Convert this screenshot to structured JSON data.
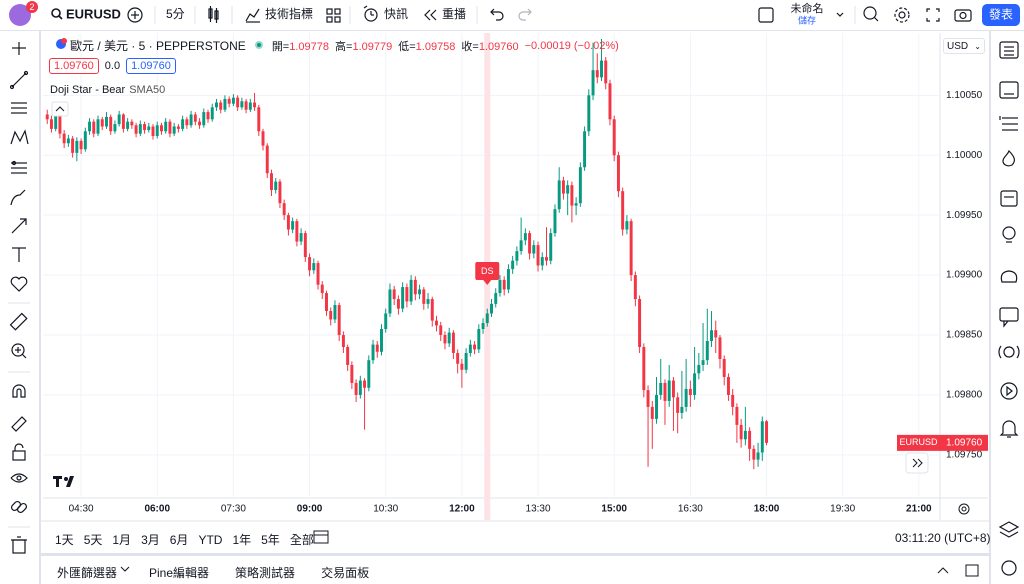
{
  "toolbar": {
    "badge": "2",
    "symbol": "EURUSD",
    "interval": "5分",
    "indicators": "技術指標",
    "alerts": "快訊",
    "replay": "重播",
    "layout_name": "未命名",
    "save": "儲存",
    "publish": "發表"
  },
  "chart_data": {
    "type": "candlestick",
    "title": "歐元 / 美元 · 5 · PEPPERSTONE",
    "ohlc_legend": [
      [
        "開=",
        "1.09778"
      ],
      [
        "高=",
        "1.09779"
      ],
      [
        "低=",
        "1.09758"
      ],
      [
        "收=",
        "1.09760"
      ]
    ],
    "change": "−0.00019 (−0.02%)",
    "quote": {
      "bid": "1.09760",
      "spread": "0.0",
      "ask": "1.09760"
    },
    "indicators": [
      "Doji Star - Bear",
      "SMA50"
    ],
    "currency": "USD",
    "annotation": {
      "x": "12:30",
      "label": "DS"
    },
    "price_tag": {
      "symbol": "EURUSD",
      "value": "1.09760"
    },
    "colors": {
      "up": "#089981",
      "down": "#f23645"
    },
    "grid": true,
    "xlim": [
      "03:45",
      "21:25"
    ],
    "xticks": [
      "04:30",
      "06:00",
      "07:30",
      "09:00",
      "10:30",
      "12:00",
      "13:30",
      "15:00",
      "16:30",
      "18:00",
      "19:30",
      "21:00"
    ],
    "ylim": [
      1.09714,
      1.10102
    ],
    "yticks": [
      {
        "value": 1.0975,
        "label": "1.09750"
      },
      {
        "value": 1.098,
        "label": "1.09800"
      },
      {
        "value": 1.0985,
        "label": "1.09850"
      },
      {
        "value": 1.099,
        "label": "1.09900"
      },
      {
        "value": 1.0995,
        "label": "1.09950"
      },
      {
        "value": 1.1,
        "label": "1.10000"
      },
      {
        "value": 1.1005,
        "label": "1.10050"
      }
    ],
    "x": [
      "03:50",
      "03:55",
      "04:00",
      "04:05",
      "04:10",
      "04:15",
      "04:20",
      "04:25",
      "04:30",
      "04:35",
      "04:40",
      "04:45",
      "04:50",
      "04:55",
      "05:00",
      "05:05",
      "05:10",
      "05:15",
      "05:20",
      "05:25",
      "05:30",
      "05:35",
      "05:40",
      "05:45",
      "05:50",
      "05:55",
      "06:00",
      "06:05",
      "06:10",
      "06:15",
      "06:20",
      "06:25",
      "06:30",
      "06:35",
      "06:40",
      "06:45",
      "06:50",
      "06:55",
      "07:00",
      "07:05",
      "07:10",
      "07:15",
      "07:20",
      "07:25",
      "07:30",
      "07:35",
      "07:40",
      "07:45",
      "07:50",
      "07:55",
      "08:00",
      "08:05",
      "08:10",
      "08:15",
      "08:20",
      "08:25",
      "08:30",
      "08:35",
      "08:40",
      "08:45",
      "08:50",
      "08:55",
      "09:00",
      "09:05",
      "09:10",
      "09:15",
      "09:20",
      "09:25",
      "09:30",
      "09:35",
      "09:40",
      "09:45",
      "09:50",
      "09:55",
      "10:00",
      "10:05",
      "10:10",
      "10:15",
      "10:20",
      "10:25",
      "10:30",
      "10:35",
      "10:40",
      "10:45",
      "10:50",
      "10:55",
      "11:00",
      "11:05",
      "11:10",
      "11:15",
      "11:20",
      "11:25",
      "11:30",
      "11:35",
      "11:40",
      "11:45",
      "11:50",
      "11:55",
      "12:00",
      "12:05",
      "12:10",
      "12:15",
      "12:20",
      "12:25",
      "12:30",
      "12:35",
      "12:40",
      "12:45",
      "12:50",
      "12:55",
      "13:00",
      "13:05",
      "13:10",
      "13:15",
      "13:20",
      "13:25",
      "13:30",
      "13:35",
      "13:40",
      "13:45",
      "13:50",
      "13:55",
      "14:00",
      "14:05",
      "14:10",
      "14:15",
      "14:20",
      "14:25",
      "14:30",
      "14:35",
      "14:40",
      "14:45",
      "14:50",
      "14:55",
      "15:00",
      "15:05",
      "15:10",
      "15:15",
      "15:20",
      "15:25",
      "15:30",
      "15:35",
      "15:40",
      "15:45",
      "15:50",
      "15:55",
      "16:00",
      "16:05",
      "16:10",
      "16:15",
      "16:20",
      "16:25",
      "16:30",
      "16:35",
      "16:40",
      "16:45",
      "16:50",
      "16:55",
      "17:00",
      "17:05",
      "17:10",
      "17:15",
      "17:20",
      "17:25",
      "17:30",
      "17:35",
      "17:40",
      "17:45",
      "17:50",
      "17:55",
      "18:00"
    ],
    "ohlc": [
      [
        1.10034,
        1.10038,
        1.10026,
        1.1003
      ],
      [
        1.1003,
        1.10033,
        1.10019,
        1.10022
      ],
      [
        1.10022,
        1.10038,
        1.1002,
        1.10035
      ],
      [
        1.10035,
        1.10037,
        1.10014,
        1.10018
      ],
      [
        1.10018,
        1.10021,
        1.10006,
        1.1001
      ],
      [
        1.1001,
        1.10017,
        1.10007,
        1.10014
      ],
      [
        1.10014,
        1.10016,
        1.09998,
        1.10002
      ],
      [
        1.10002,
        1.10015,
        1.09995,
        1.10012
      ],
      [
        1.10012,
        1.10014,
        1.10001,
        1.10005
      ],
      [
        1.10005,
        1.10023,
        1.10003,
        1.1002
      ],
      [
        1.1002,
        1.10031,
        1.10017,
        1.10028
      ],
      [
        1.10028,
        1.1003,
        1.10015,
        1.10018
      ],
      [
        1.10018,
        1.10033,
        1.10016,
        1.1003
      ],
      [
        1.1003,
        1.10032,
        1.10021,
        1.10024
      ],
      [
        1.10024,
        1.10036,
        1.10022,
        1.10032
      ],
      [
        1.10032,
        1.10034,
        1.10017,
        1.1002
      ],
      [
        1.1002,
        1.10029,
        1.10018,
        1.10026
      ],
      [
        1.10026,
        1.10037,
        1.10024,
        1.10034
      ],
      [
        1.10034,
        1.10035,
        1.10019,
        1.10022
      ],
      [
        1.10022,
        1.10031,
        1.1002,
        1.10028
      ],
      [
        1.10028,
        1.1003,
        1.10022,
        1.10025
      ],
      [
        1.10025,
        1.10027,
        1.10015,
        1.10018
      ],
      [
        1.10018,
        1.10029,
        1.10016,
        1.10026
      ],
      [
        1.10026,
        1.10028,
        1.10018,
        1.10021
      ],
      [
        1.10021,
        1.10027,
        1.10019,
        1.10024
      ],
      [
        1.10024,
        1.10026,
        1.10013,
        1.10016
      ],
      [
        1.10016,
        1.10028,
        1.10014,
        1.10025
      ],
      [
        1.10025,
        1.10027,
        1.10017,
        1.1002
      ],
      [
        1.1002,
        1.10031,
        1.10018,
        1.10028
      ],
      [
        1.10028,
        1.1003,
        1.10015,
        1.10018
      ],
      [
        1.10018,
        1.10027,
        1.10016,
        1.10024
      ],
      [
        1.10024,
        1.10026,
        1.10019,
        1.10022
      ],
      [
        1.10022,
        1.10033,
        1.1002,
        1.1003
      ],
      [
        1.1003,
        1.10032,
        1.10022,
        1.10025
      ],
      [
        1.10025,
        1.10037,
        1.10023,
        1.10034
      ],
      [
        1.10034,
        1.10036,
        1.10025,
        1.10028
      ],
      [
        1.10028,
        1.10031,
        1.10022,
        1.10025
      ],
      [
        1.10025,
        1.10039,
        1.10023,
        1.10036
      ],
      [
        1.10036,
        1.10038,
        1.10027,
        1.1003
      ],
      [
        1.1003,
        1.10043,
        1.10028,
        1.1004
      ],
      [
        1.1004,
        1.10047,
        1.10037,
        1.10044
      ],
      [
        1.10044,
        1.10046,
        1.10035,
        1.10038
      ],
      [
        1.10038,
        1.1005,
        1.10036,
        1.10047
      ],
      [
        1.10047,
        1.10049,
        1.1004,
        1.10043
      ],
      [
        1.10043,
        1.10051,
        1.10041,
        1.10048
      ],
      [
        1.10048,
        1.1005,
        1.10037,
        1.1004
      ],
      [
        1.1004,
        1.10048,
        1.10038,
        1.10045
      ],
      [
        1.10045,
        1.10047,
        1.10035,
        1.10038
      ],
      [
        1.10038,
        1.10047,
        1.10036,
        1.10044
      ],
      [
        1.10044,
        1.10052,
        1.10037,
        1.1004
      ],
      [
        1.1004,
        1.10042,
        1.10016,
        1.1002
      ],
      [
        1.1002,
        1.10022,
        1.10004,
        1.10008
      ],
      [
        1.10008,
        1.1001,
        1.09981,
        1.09985
      ],
      [
        1.09985,
        1.09988,
        1.09966,
        1.09971
      ],
      [
        1.09971,
        1.09981,
        1.09968,
        1.09978
      ],
      [
        1.09978,
        1.0998,
        1.09956,
        1.0996
      ],
      [
        1.0996,
        1.09963,
        1.09946,
        1.0995
      ],
      [
        1.0995,
        1.09952,
        1.09933,
        1.09938
      ],
      [
        1.09938,
        1.09948,
        1.09935,
        1.09945
      ],
      [
        1.09945,
        1.09947,
        1.09924,
        1.09928
      ],
      [
        1.09928,
        1.09939,
        1.09925,
        1.09935
      ],
      [
        1.09935,
        1.09937,
        1.09911,
        1.09915
      ],
      [
        1.09915,
        1.09918,
        1.09899,
        1.09904
      ],
      [
        1.09904,
        1.09914,
        1.09901,
        1.0991
      ],
      [
        1.0991,
        1.09912,
        1.09888,
        1.09892
      ],
      [
        1.09892,
        1.09895,
        1.0988,
        1.09885
      ],
      [
        1.09885,
        1.09887,
        1.09866,
        1.0987
      ],
      [
        1.0987,
        1.09873,
        1.09858,
        1.09863
      ],
      [
        1.09863,
        1.09879,
        1.0986,
        1.09875
      ],
      [
        1.09875,
        1.09877,
        1.09845,
        1.0985
      ],
      [
        1.0985,
        1.09853,
        1.09835,
        1.0984
      ],
      [
        1.0984,
        1.09842,
        1.0982,
        1.09825
      ],
      [
        1.09825,
        1.09828,
        1.09805,
        1.0981
      ],
      [
        1.0981,
        1.09813,
        1.09794,
        1.098
      ],
      [
        1.098,
        1.09816,
        1.09797,
        1.09812
      ],
      [
        1.09812,
        1.09814,
        1.09771,
        1.09806
      ],
      [
        1.09806,
        1.09833,
        1.09803,
        1.09829
      ],
      [
        1.09829,
        1.09846,
        1.09826,
        1.09842
      ],
      [
        1.09842,
        1.09845,
        1.09831,
        1.09836
      ],
      [
        1.09836,
        1.09859,
        1.09833,
        1.09855
      ],
      [
        1.09855,
        1.09872,
        1.09852,
        1.09868
      ],
      [
        1.09868,
        1.09893,
        1.09865,
        1.09888
      ],
      [
        1.09888,
        1.09891,
        1.09875,
        1.0988
      ],
      [
        1.0988,
        1.09883,
        1.09867,
        1.09872
      ],
      [
        1.09872,
        1.09894,
        1.09869,
        1.0989
      ],
      [
        1.0989,
        1.09893,
        1.09873,
        1.09878
      ],
      [
        1.09878,
        1.099,
        1.09875,
        1.09896
      ],
      [
        1.09896,
        1.09899,
        1.09879,
        1.09884
      ],
      [
        1.09884,
        1.09892,
        1.0988,
        1.09888
      ],
      [
        1.09888,
        1.0989,
        1.09871,
        1.09876
      ],
      [
        1.09876,
        1.09885,
        1.09872,
        1.0988
      ],
      [
        1.0988,
        1.09882,
        1.09857,
        1.09862
      ],
      [
        1.09862,
        1.09866,
        1.09853,
        1.09858
      ],
      [
        1.09858,
        1.09861,
        1.09845,
        1.0985
      ],
      [
        1.0985,
        1.09853,
        1.09838,
        1.09843
      ],
      [
        1.09843,
        1.09856,
        1.0984,
        1.09852
      ],
      [
        1.09852,
        1.09854,
        1.0983,
        1.09835
      ],
      [
        1.09835,
        1.09838,
        1.09818,
        1.09826
      ],
      [
        1.09826,
        1.0983,
        1.09806,
        1.09821
      ],
      [
        1.09821,
        1.09839,
        1.09818,
        1.09835
      ],
      [
        1.09835,
        1.09846,
        1.09832,
        1.09842
      ],
      [
        1.09842,
        1.09845,
        1.09834,
        1.09838
      ],
      [
        1.09838,
        1.09859,
        1.09835,
        1.09855
      ],
      [
        1.09855,
        1.09864,
        1.09851,
        1.0986
      ],
      [
        1.0986,
        1.09872,
        1.09857,
        1.09868
      ],
      [
        1.09868,
        1.0988,
        1.09865,
        1.09876
      ],
      [
        1.09876,
        1.09889,
        1.09873,
        1.09885
      ],
      [
        1.09885,
        1.099,
        1.09882,
        1.09896
      ],
      [
        1.09896,
        1.09899,
        1.09883,
        1.09888
      ],
      [
        1.09888,
        1.09909,
        1.09885,
        1.09905
      ],
      [
        1.09905,
        1.09916,
        1.09901,
        1.09912
      ],
      [
        1.09912,
        1.09924,
        1.09908,
        1.0992
      ],
      [
        1.0992,
        1.09948,
        1.09917,
        1.09929
      ],
      [
        1.09929,
        1.09939,
        1.09925,
        1.09935
      ],
      [
        1.09935,
        1.09937,
        1.09913,
        1.09918
      ],
      [
        1.09918,
        1.09929,
        1.09914,
        1.09925
      ],
      [
        1.09925,
        1.09928,
        1.09903,
        1.09908
      ],
      [
        1.09908,
        1.09919,
        1.09904,
        1.09915
      ],
      [
        1.09915,
        1.0994,
        1.09908,
        1.09912
      ],
      [
        1.09912,
        1.09939,
        1.09909,
        1.09935
      ],
      [
        1.09935,
        1.09959,
        1.09932,
        1.09955
      ],
      [
        1.09955,
        1.0999,
        1.09952,
        1.09979
      ],
      [
        1.09979,
        1.09982,
        1.09963,
        1.09968
      ],
      [
        1.09968,
        1.09979,
        1.0995,
        1.09975
      ],
      [
        1.09975,
        1.09978,
        1.09944,
        1.09958
      ],
      [
        1.09958,
        1.09965,
        1.0995,
        1.0996
      ],
      [
        1.0996,
        1.09994,
        1.09957,
        1.0999
      ],
      [
        1.0999,
        1.10024,
        1.09987,
        1.1002
      ],
      [
        1.1002,
        1.10055,
        1.10016,
        1.1005
      ],
      [
        1.1005,
        1.10094,
        1.10046,
        1.10071
      ],
      [
        1.10071,
        1.10085,
        1.1006,
        1.10065
      ],
      [
        1.10065,
        1.10097,
        1.10062,
        1.10079
      ],
      [
        1.10079,
        1.10082,
        1.10055,
        1.1006
      ],
      [
        1.1006,
        1.10063,
        1.10025,
        1.1003
      ],
      [
        1.1003,
        1.10033,
        1.09995,
        1.1
      ],
      [
        1.1,
        1.10003,
        1.09965,
        1.0997
      ],
      [
        1.0997,
        1.09973,
        1.09933,
        1.09938
      ],
      [
        1.09938,
        1.0995,
        1.09934,
        1.09945
      ],
      [
        1.09945,
        1.09947,
        1.09895,
        1.099
      ],
      [
        1.099,
        1.09903,
        1.09874,
        1.0988
      ],
      [
        1.0988,
        1.09883,
        1.09835,
        1.0984
      ],
      [
        1.0984,
        1.09843,
        1.09798,
        1.09804
      ],
      [
        1.09804,
        1.09808,
        1.0974,
        1.0979
      ],
      [
        1.0979,
        1.09795,
        1.09755,
        1.0978
      ],
      [
        1.0978,
        1.09815,
        1.09776,
        1.098
      ],
      [
        1.098,
        1.0983,
        1.09796,
        1.0981
      ],
      [
        1.0981,
        1.09813,
        1.09775,
        1.09795
      ],
      [
        1.09795,
        1.09825,
        1.0979,
        1.09812
      ],
      [
        1.09812,
        1.09815,
        1.0977,
        1.09798
      ],
      [
        1.09798,
        1.09802,
        1.09768,
        1.09785
      ],
      [
        1.09785,
        1.0982,
        1.0978,
        1.0979
      ],
      [
        1.0979,
        1.0983,
        1.09786,
        1.09805
      ],
      [
        1.09805,
        1.09812,
        1.0979,
        1.098
      ],
      [
        1.098,
        1.0984,
        1.09796,
        1.09818
      ],
      [
        1.09818,
        1.09835,
        1.09813,
        1.09825
      ],
      [
        1.09825,
        1.0986,
        1.0982,
        1.09829
      ],
      [
        1.09829,
        1.09872,
        1.09825,
        1.09845
      ],
      [
        1.09845,
        1.0987,
        1.0984,
        1.09854
      ],
      [
        1.09854,
        1.09862,
        1.09835,
        1.09848
      ],
      [
        1.09848,
        1.0985,
        1.09822,
        1.0983
      ],
      [
        1.0983,
        1.09833,
        1.09808,
        1.09815
      ],
      [
        1.09815,
        1.09818,
        1.09795,
        1.098
      ],
      [
        1.098,
        1.09805,
        1.09783,
        1.0979
      ],
      [
        1.0979,
        1.09793,
        1.0976,
        1.09775
      ],
      [
        1.09775,
        1.0978,
        1.09756,
        1.09763
      ],
      [
        1.09763,
        1.0979,
        1.09758,
        1.0977
      ],
      [
        1.0977,
        1.09773,
        1.09745,
        1.09755
      ],
      [
        1.09755,
        1.09758,
        1.09738,
        1.09746
      ],
      [
        1.09746,
        1.0976,
        1.0974,
        1.09752
      ],
      [
        1.09752,
        1.09782,
        1.09745,
        1.09778
      ],
      [
        1.09778,
        1.09779,
        1.09758,
        1.0976
      ]
    ]
  },
  "range_buttons": [
    "1天",
    "5天",
    "1月",
    "3月",
    "6月",
    "YTD",
    "1年",
    "5年",
    "全部"
  ],
  "clock": "03:11:20 (UTC+8)",
  "bottom_tabs": [
    "外匯篩選器",
    "Pine編輯器",
    "策略測試器",
    "交易面板"
  ]
}
